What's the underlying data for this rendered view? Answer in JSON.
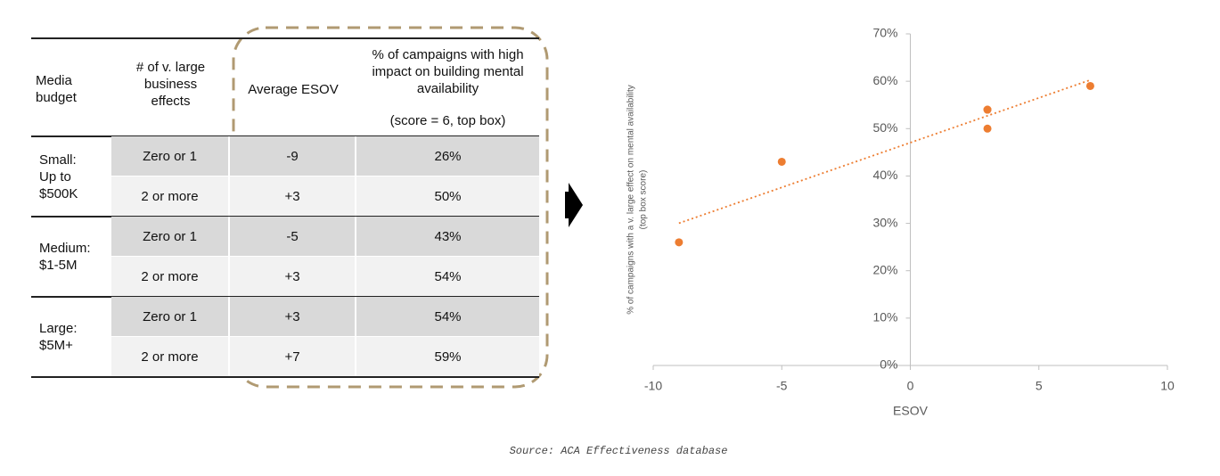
{
  "table": {
    "headers": [
      "Media budget",
      "# of v. large business effects",
      "Average ESOV",
      "% of campaigns with high impact on building mental availability"
    ],
    "header_note": "(score = 6, top box)",
    "groups": [
      {
        "budget": [
          "Small:",
          "Up to",
          "$500K"
        ],
        "rows": [
          [
            "Zero or 1",
            "-9",
            "26%"
          ],
          [
            "2 or more",
            "+3",
            "50%"
          ]
        ]
      },
      {
        "budget": [
          "Medium:",
          "$1-5M"
        ],
        "rows": [
          [
            "Zero or 1",
            "-5",
            "43%"
          ],
          [
            "2 or more",
            "+3",
            "54%"
          ]
        ]
      },
      {
        "budget": [
          "Large:",
          "$5M+"
        ],
        "rows": [
          [
            "Zero or 1",
            "+3",
            "54%"
          ],
          [
            "2 or more",
            "+7",
            "59%"
          ]
        ]
      }
    ]
  },
  "chart_data": {
    "type": "scatter",
    "x_label": "ESOV",
    "y_label": [
      "% of campaigns with a v. large effect on mental availability",
      "(top box score)"
    ],
    "x": [
      -9,
      3,
      -5,
      3,
      3,
      7
    ],
    "values": [
      26,
      50,
      43,
      54,
      54,
      59
    ],
    "color": "#ed7d31",
    "trendline": "linear",
    "xlim": [
      -10,
      10
    ],
    "xticks": [
      -10,
      -5,
      0,
      5,
      10
    ],
    "ylim": [
      0,
      70
    ],
    "yticks": [
      {
        "value": 0,
        "label": "0%"
      },
      {
        "value": 10,
        "label": "10%"
      },
      {
        "value": 20,
        "label": "20%"
      },
      {
        "value": 30,
        "label": "30%"
      },
      {
        "value": 40,
        "label": "40%"
      },
      {
        "value": 50,
        "label": "50%"
      },
      {
        "value": 60,
        "label": "60%"
      },
      {
        "value": 70,
        "label": "70%"
      }
    ],
    "grid": false
  },
  "source": "Source: ACA Effectiveness database"
}
